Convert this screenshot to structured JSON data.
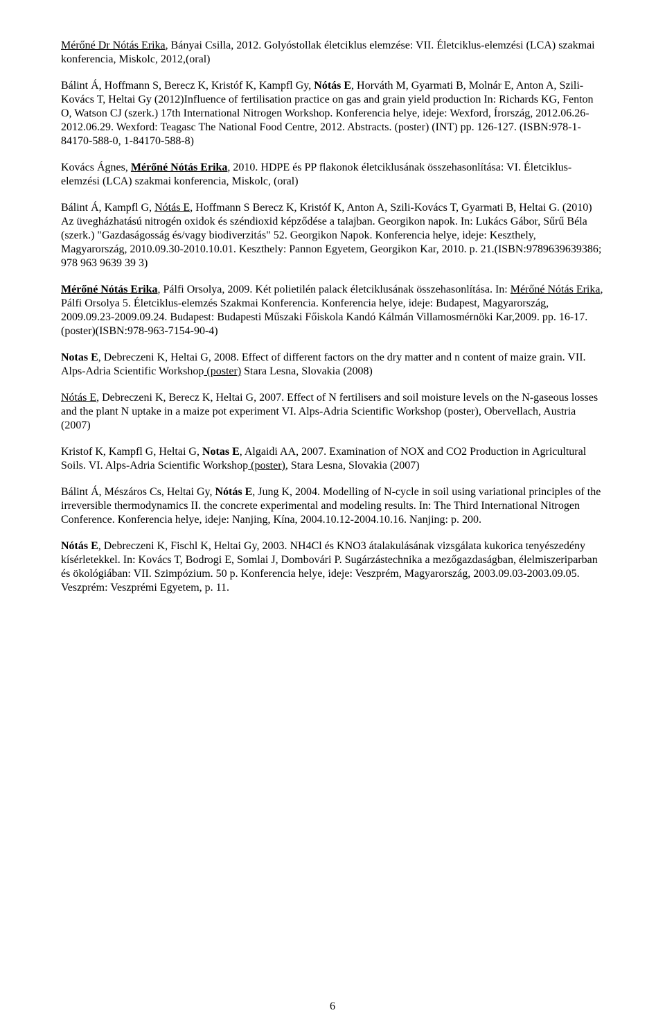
{
  "page_number": "6",
  "paragraphs": [
    {
      "spans": [
        {
          "text": "Mérőné Dr Nótás Erika",
          "style": "u"
        },
        {
          "text": ", Bányai Csilla, 2012. Golyóstollak életciklus elemzése: VII. Életciklus-elemzési (LCA) szakmai konferencia, Miskolc, 2012,(oral)"
        }
      ]
    },
    {
      "spans": [
        {
          "text": "Bálint Á, Hoffmann S, Berecz K, Kristóf K, Kampfl Gy, "
        },
        {
          "text": "Nótás E",
          "style": "b"
        },
        {
          "text": ", Horváth M, Gyarmati B, Molnár E, Anton A, Szili-Kovács T, Heltai Gy (2012)Influence of fertilisation practice on gas and grain yield production In: Richards KG, Fenton O, Watson CJ (szerk.) 17th International Nitrogen Workshop. Konferencia helye, ideje: Wexford, Írország, 2012.06.26-2012.06.29. Wexford: Teagasc The National Food Centre, 2012. Abstracts. (poster) (INT) pp. 126-127. (ISBN:978-1-84170-588-0, 1-84170-588-8)"
        }
      ]
    },
    {
      "spans": [
        {
          "text": "Kovács Ágnes, "
        },
        {
          "text": "Mérőné Nótás Erika",
          "style": "ub"
        },
        {
          "text": ", 2010. HDPE és PP flakonok életciklusának összehasonlítása: VI. Életciklus-elemzési (LCA) szakmai konferencia, Miskolc, (oral)"
        }
      ]
    },
    {
      "spans": [
        {
          "text": "Bálint Á, Kampfl G, "
        },
        {
          "text": "Nótás E",
          "style": "u"
        },
        {
          "text": ", Hoffmann S Berecz K, Kristóf K, Anton A, Szili-Kovács T, Gyarmati B, Heltai G. (2010) Az üvegházhatású nitrogén oxidok és széndioxid képződése a talajban. Georgikon napok. In: Lukács Gábor, Sűrű Béla (szerk.) \"Gazdaságosság és/vagy biodiverzitás\" 52. Georgikon Napok. Konferencia helye, ideje: Keszthely, Magyarország, 2010.09.30-2010.10.01. Keszthely: Pannon Egyetem, Georgikon Kar, 2010. p. 21.(ISBN:9789639639386; 978 963 9639 39 3)"
        }
      ]
    },
    {
      "spans": [
        {
          "text": "Mérőné Nótás Erika",
          "style": "ub"
        },
        {
          "text": ", Pálfi Orsolya, 2009. Két polietilén palack életciklusának összehasonlítása. In: "
        },
        {
          "text": "Mérőné Nótás Erika",
          "style": "u"
        },
        {
          "text": ", Pálfi Orsolya 5. Életciklus-elemzés Szakmai Konferencia. Konferencia helye, ideje: Budapest, Magyarország, 2009.09.23-2009.09.24. Budapest: Budapesti Műszaki Főiskola Kandó Kálmán Villamosmérnöki Kar,2009. pp. 16-17.(poster)(ISBN:978-963-7154-90-4)"
        }
      ]
    },
    {
      "spans": [
        {
          "text": "Notas E",
          "style": "b"
        },
        {
          "text": ", Debreczeni K, Heltai G, 2008. Effect of different factors on the dry matter and n content of maize grain. VII. Alps-Adria Scientific Workshop"
        },
        {
          "text": " (poster)",
          "style": "u"
        },
        {
          "text": " Stara Lesna, Slovakia (2008)"
        }
      ]
    },
    {
      "spans": [
        {
          "text": "Nótás E",
          "style": "u"
        },
        {
          "text": ", Debreczeni K, Berecz K, Heltai G, 2007. Effect of N fertilisers and soil moisture levels on the N-gaseous losses and the plant N uptake in a maize pot experiment VI. Alps-Adria Scientific Workshop (poster), Obervellach, Austria (2007)"
        }
      ]
    },
    {
      "spans": [
        {
          "text": "Kristof K, Kampfl G, Heltai G, "
        },
        {
          "text": "Notas E",
          "style": "b"
        },
        {
          "text": ", Algaidi AA, 2007. Examination of NOX and CO2 Production in Agricultural Soils. VI. Alps-Adria Scientific Workshop"
        },
        {
          "text": " (poster)",
          "style": "u"
        },
        {
          "text": ", Stara Lesna, Slovakia (2007)"
        }
      ]
    },
    {
      "spans": [
        {
          "text": "Bálint Á, Mészáros Cs, Heltai Gy, "
        },
        {
          "text": "Nótás E",
          "style": "b"
        },
        {
          "text": ", Jung K, 2004. Modelling of N-cycle in soil using variational principles of the irreversible thermodynamics II. the concrete experimental and modeling results. In: The Third International Nitrogen Conference. Konferencia helye, ideje: Nanjing, Kína, 2004.10.12-2004.10.16. Nanjing: p. 200."
        }
      ]
    },
    {
      "spans": [
        {
          "text": "Nótás E",
          "style": "b"
        },
        {
          "text": ", Debreczeni K, Fischl K, Heltai Gy, 2003. NH4Cl és KNO3 átalakulásának vizsgálata kukorica tenyészedény kísérletekkel. In: Kovács T, Bodrogi E, Somlai J, Dombovári P. Sugárzástechnika a mezőgazdaságban, élelmiszeriparban és ökológiában: VII. Szimpózium. 50 p. Konferencia helye, ideje: Veszprém, Magyarország, 2003.09.03-2003.09.05. Veszprém: Veszprémi Egyetem, p. 11."
        }
      ]
    }
  ]
}
